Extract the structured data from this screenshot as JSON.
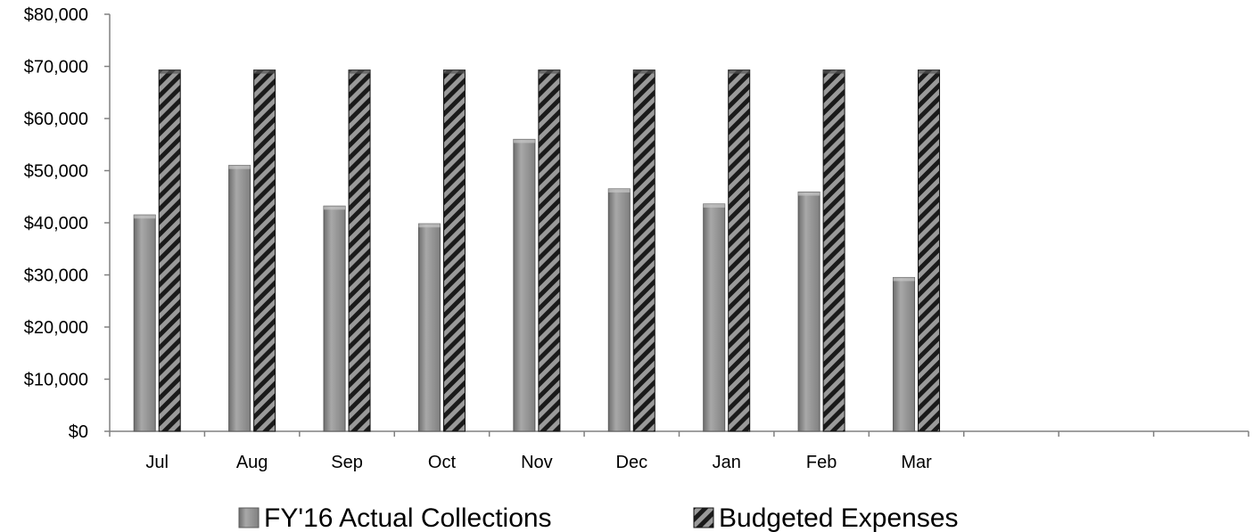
{
  "chart_data": {
    "type": "bar",
    "categories": [
      "Jul",
      "Aug",
      "Sep",
      "Oct",
      "Nov",
      "Dec",
      "Jan",
      "Feb",
      "Mar",
      "",
      "",
      ""
    ],
    "series": [
      {
        "name": "FY'16 Actual Collections",
        "values": [
          41500,
          51000,
          43200,
          39800,
          56000,
          46500,
          43600,
          45900,
          29500,
          null,
          null,
          null
        ]
      },
      {
        "name": "Budgeted Expenses",
        "values": [
          69300,
          69300,
          69300,
          69300,
          69300,
          69300,
          69300,
          69300,
          69300,
          null,
          null,
          null
        ]
      }
    ],
    "title": "",
    "xlabel": "",
    "ylabel": "",
    "ylim": [
      0,
      80000
    ],
    "yticks": [
      0,
      10000,
      20000,
      30000,
      40000,
      50000,
      60000,
      70000,
      80000
    ],
    "ytick_labels": [
      "$0",
      "$10,000",
      "$20,000",
      "$30,000",
      "$40,000",
      "$50,000",
      "$60,000",
      "$70,000",
      "$80,000"
    ],
    "grid": false,
    "legend": "bottom",
    "colors": {
      "collections": "#8c8c8c",
      "expenses_dark": "#1a1a1a",
      "expenses_light": "#9a9a9a"
    }
  }
}
